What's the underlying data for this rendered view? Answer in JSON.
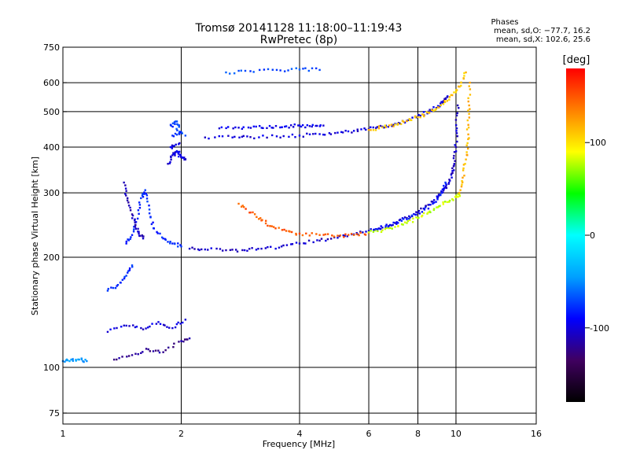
{
  "chart_data": {
    "type": "scatter",
    "title": "Tromsø 20141128 11:18:00–11:19:43",
    "subtitle": "RwPretec (8p)",
    "stats": {
      "heading": "Phases",
      "line1": "mean, sd,O: −77.7, 16.2",
      "line2": "mean, sd,X: 102.6, 25.6"
    },
    "xlabel": "Frequency [MHz]",
    "ylabel": "Stationary phase Virtual Height [km]",
    "x_scale": "log",
    "y_scale": "log",
    "xlim": [
      1,
      16
    ],
    "ylim": [
      70,
      750
    ],
    "xticks": [
      1,
      2,
      4,
      6,
      8,
      10,
      16
    ],
    "yticks": [
      75,
      100,
      200,
      300,
      400,
      500,
      600,
      750
    ],
    "grid": true,
    "colorbar": {
      "unit": "[deg]",
      "range": [
        -180,
        180
      ],
      "ticks": [
        100,
        0,
        -100
      ],
      "colormap": [
        "#000000",
        "#400060",
        "#0000ff",
        "#00a0ff",
        "#00ffff",
        "#00ff00",
        "#ffff00",
        "#ff8000",
        "#ff0000"
      ]
    },
    "traces": [
      {
        "phase": -105,
        "points": [
          [
            2.1,
            211
          ],
          [
            2.3,
            210
          ],
          [
            2.6,
            209
          ],
          [
            2.9,
            209
          ],
          [
            3.2,
            211
          ],
          [
            3.6,
            214
          ],
          [
            4.0,
            218
          ],
          [
            4.5,
            222
          ],
          [
            5.0,
            226
          ],
          [
            5.5,
            231
          ],
          [
            6.0,
            236
          ],
          [
            6.5,
            241
          ],
          [
            7.0,
            248
          ],
          [
            7.5,
            256
          ],
          [
            8.0,
            265
          ],
          [
            8.5,
            278
          ],
          [
            9.0,
            292
          ],
          [
            9.3,
            305
          ],
          [
            9.6,
            320
          ],
          [
            9.8,
            340
          ],
          [
            9.9,
            360
          ],
          [
            10.0,
            400
          ],
          [
            10.05,
            450
          ],
          [
            10.1,
            520
          ]
        ]
      },
      {
        "phase": -80,
        "points": [
          [
            1.45,
            218
          ],
          [
            1.5,
            230
          ],
          [
            1.55,
            255
          ],
          [
            1.58,
            290
          ],
          [
            1.62,
            305
          ],
          [
            1.66,
            270
          ],
          [
            1.7,
            240
          ],
          [
            1.8,
            225
          ],
          [
            1.9,
            218
          ],
          [
            2.0,
            214
          ]
        ]
      },
      {
        "phase": -110,
        "points": [
          [
            1.43,
            320
          ],
          [
            1.46,
            290
          ],
          [
            1.5,
            262
          ],
          [
            1.53,
            245
          ],
          [
            1.56,
            232
          ],
          [
            1.6,
            225
          ]
        ]
      },
      {
        "phase": -100,
        "points": [
          [
            2.3,
            425
          ],
          [
            2.7,
            425
          ],
          [
            3.0,
            426
          ],
          [
            3.5,
            428
          ],
          [
            4.0,
            430
          ],
          [
            4.5,
            434
          ],
          [
            5.0,
            438
          ],
          [
            5.5,
            443
          ],
          [
            6.0,
            448
          ],
          [
            6.5,
            455
          ],
          [
            7.0,
            463
          ],
          [
            7.5,
            472
          ],
          [
            8.0,
            485
          ],
          [
            8.5,
            500
          ],
          [
            9.0,
            518
          ],
          [
            9.3,
            535
          ],
          [
            9.5,
            548
          ]
        ]
      },
      {
        "phase": 110,
        "points": [
          [
            6.0,
            446
          ],
          [
            6.5,
            453
          ],
          [
            7.0,
            461
          ],
          [
            7.5,
            471
          ],
          [
            8.0,
            483
          ],
          [
            8.5,
            497
          ],
          [
            9.0,
            514
          ],
          [
            9.5,
            535
          ],
          [
            10.0,
            565
          ],
          [
            10.3,
            600
          ],
          [
            10.6,
            640
          ]
        ]
      },
      {
        "phase": -95,
        "points": [
          [
            2.5,
            450
          ],
          [
            2.8,
            452
          ],
          [
            3.1,
            455
          ],
          [
            3.4,
            452
          ],
          [
            3.7,
            456
          ],
          [
            4.0,
            458
          ],
          [
            4.3,
            455
          ],
          [
            4.6,
            458
          ]
        ]
      },
      {
        "phase": 150,
        "points": [
          [
            2.8,
            280
          ],
          [
            3.0,
            265
          ],
          [
            3.2,
            252
          ],
          [
            3.4,
            243
          ],
          [
            3.7,
            236
          ],
          [
            4.0,
            232
          ],
          [
            4.5,
            230
          ],
          [
            5.0,
            229
          ],
          [
            5.5,
            230
          ],
          [
            6.0,
            233
          ]
        ]
      },
      {
        "phase": 80,
        "points": [
          [
            6.0,
            234
          ],
          [
            6.5,
            237
          ],
          [
            7.0,
            242
          ],
          [
            7.5,
            248
          ],
          [
            8.0,
            256
          ],
          [
            8.5,
            265
          ],
          [
            9.0,
            274
          ],
          [
            9.5,
            283
          ],
          [
            10.0,
            292
          ],
          [
            10.2,
            297
          ]
        ]
      },
      {
        "phase": -85,
        "points": [
          [
            6.2,
            238
          ],
          [
            6.8,
            245
          ],
          [
            7.5,
            254
          ],
          [
            8.2,
            266
          ],
          [
            8.8,
            282
          ],
          [
            9.2,
            300
          ],
          [
            9.4,
            320
          ]
        ]
      },
      {
        "phase": 115,
        "points": [
          [
            10.2,
            300
          ],
          [
            10.4,
            330
          ],
          [
            10.6,
            370
          ],
          [
            10.7,
            410
          ],
          [
            10.75,
            460
          ],
          [
            10.8,
            520
          ],
          [
            10.85,
            600
          ]
        ]
      },
      {
        "phase": -70,
        "points": [
          [
            2.6,
            640
          ],
          [
            3.0,
            645
          ],
          [
            3.5,
            650
          ],
          [
            4.0,
            652
          ],
          [
            4.5,
            650
          ]
        ]
      },
      {
        "phase": -120,
        "points": [
          [
            1.35,
            105
          ],
          [
            1.5,
            108
          ],
          [
            1.65,
            112
          ],
          [
            1.8,
            110
          ],
          [
            2.0,
            118
          ],
          [
            2.1,
            120
          ]
        ]
      },
      {
        "phase": -100,
        "points": [
          [
            1.3,
            125
          ],
          [
            1.45,
            130
          ],
          [
            1.6,
            127
          ],
          [
            1.75,
            133
          ],
          [
            1.9,
            128
          ],
          [
            2.05,
            135
          ]
        ]
      },
      {
        "phase": -80,
        "points": [
          [
            1.3,
            162
          ],
          [
            1.38,
            168
          ],
          [
            1.45,
            178
          ],
          [
            1.5,
            190
          ]
        ]
      },
      {
        "phase": -100,
        "points": [
          [
            1.85,
            360
          ],
          [
            1.9,
            380
          ],
          [
            1.95,
            390
          ],
          [
            2.0,
            375
          ],
          [
            2.05,
            370
          ],
          [
            1.88,
            400
          ],
          [
            1.98,
            410
          ]
        ]
      },
      {
        "phase": -75,
        "points": [
          [
            1.9,
            430
          ],
          [
            2.0,
            440
          ],
          [
            1.95,
            470
          ],
          [
            1.88,
            460
          ],
          [
            2.05,
            430
          ]
        ]
      },
      {
        "phase": -45,
        "points": [
          [
            1.0,
            104
          ],
          [
            1.05,
            105
          ],
          [
            1.1,
            105
          ],
          [
            1.15,
            104
          ]
        ]
      }
    ]
  }
}
